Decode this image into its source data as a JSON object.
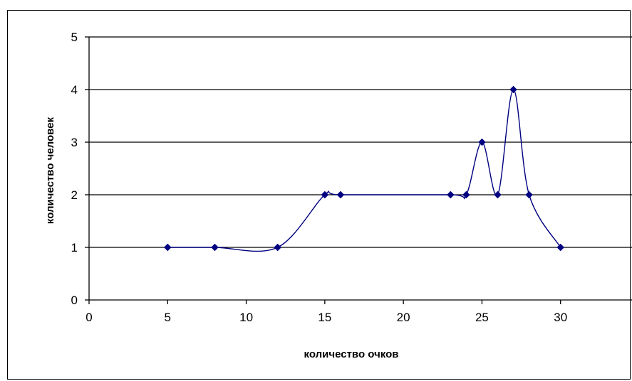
{
  "chart_data": {
    "type": "line",
    "title": "",
    "xlabel": "количество очков",
    "ylabel": "количество человек",
    "xlim": [
      0,
      35
    ],
    "ylim": [
      0,
      5
    ],
    "x_ticks": [
      "0",
      "5",
      "10",
      "15",
      "20",
      "25",
      "30",
      "35"
    ],
    "y_ticks": [
      "0",
      "1",
      "2",
      "3",
      "4",
      "5"
    ],
    "grid": "horizontal",
    "legend": "none",
    "smooth": true,
    "marker": "diamond",
    "series": [
      {
        "color": "#000080",
        "x": [
          5,
          8,
          12,
          15,
          16,
          23,
          24,
          25,
          26,
          27,
          28,
          30
        ],
        "y": [
          1,
          1,
          1,
          2,
          2,
          2,
          2,
          3,
          2,
          4,
          2,
          1
        ]
      }
    ]
  }
}
